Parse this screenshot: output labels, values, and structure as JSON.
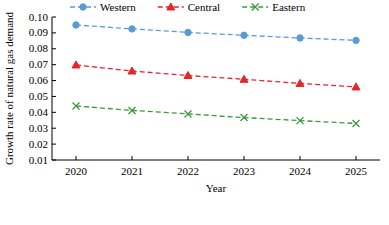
{
  "chart_data": {
    "type": "line",
    "x_label": "Year",
    "y_label": "Growth rate of natural gas demand",
    "categories": [
      "2020",
      "2021",
      "2022",
      "2023",
      "2024",
      "2025"
    ],
    "series": [
      {
        "name": "Western",
        "color": "#5b9bd5",
        "marker": "circle",
        "line_style": "dashed",
        "values": [
          0.095,
          0.0925,
          0.0903,
          0.0885,
          0.0868,
          0.0853
        ]
      },
      {
        "name": "Central",
        "color": "#e3262b",
        "marker": "triangle",
        "line_style": "dashed",
        "values": [
          0.0698,
          0.066,
          0.0632,
          0.0608,
          0.0582,
          0.056
        ]
      },
      {
        "name": "Eastern",
        "color": "#3a9a3a",
        "marker": "x",
        "line_style": "dashed",
        "values": [
          0.044,
          0.0412,
          0.039,
          0.0367,
          0.0348,
          0.033
        ]
      }
    ],
    "ylim": [
      0.01,
      0.1
    ],
    "yticks": [
      0.01,
      0.02,
      0.03,
      0.04,
      0.05,
      0.06,
      0.07,
      0.08,
      0.09,
      {
        "value": 0.1,
        "label": "0.10"
      }
    ],
    "grid": false,
    "legend": "top"
  }
}
